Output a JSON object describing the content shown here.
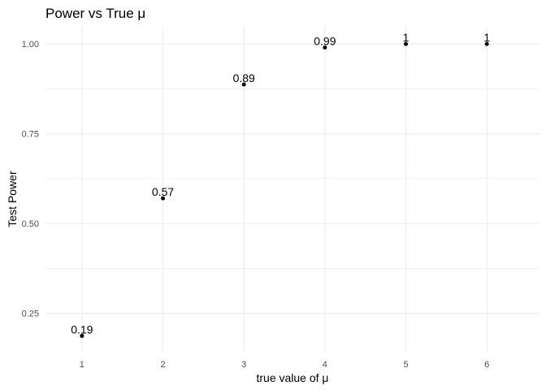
{
  "chart_data": {
    "type": "scatter",
    "title": "Power vs True μ",
    "xlabel": "true value of μ",
    "ylabel": "Test Power",
    "x": [
      1,
      2,
      3,
      4,
      5,
      6
    ],
    "y": [
      0.187,
      0.57,
      0.887,
      0.99,
      1.0,
      1.0
    ],
    "point_labels": [
      "0.19",
      "0.57",
      "0.89",
      "0.99",
      "1",
      "1"
    ],
    "x_ticks": [
      "1",
      "2",
      "3",
      "4",
      "5",
      "6"
    ],
    "y_ticks": [
      "0.25",
      "0.50",
      "0.75",
      "1.00"
    ],
    "xlim": [
      0.55,
      6.65
    ],
    "ylim": [
      0.145,
      1.05
    ],
    "grid": true,
    "legend": "none",
    "point_color": "#000000",
    "grid_color": "#ebebeb"
  }
}
